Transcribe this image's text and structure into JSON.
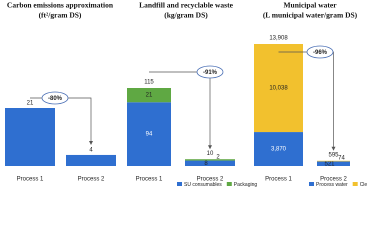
{
  "chart_data": [
    {
      "type": "bar",
      "title": "Carbon emissions approximation",
      "subtitle": "(ft²/gram DS)",
      "categories": [
        "Process 1",
        "Process 2"
      ],
      "values": [
        21,
        4
      ],
      "color": "#2f6fd0",
      "annotation": "-80%"
    },
    {
      "type": "stacked_bar",
      "title": "Landfill and recyclable waste",
      "subtitle": "(kg/gram DS)",
      "categories": [
        "Process 1",
        "Process 2"
      ],
      "series": [
        {
          "name": "SU consumables",
          "color": "#2f6fd0",
          "values": [
            94,
            8
          ]
        },
        {
          "name": "Packaging",
          "color": "#5fa843",
          "values": [
            21,
            2
          ]
        }
      ],
      "totals": [
        115,
        10
      ],
      "annotation": "-91%"
    },
    {
      "type": "stacked_bar",
      "title": "Municipal water",
      "subtitle": "(L municipal water/gram DS)",
      "categories": [
        "Process 1",
        "Process 2"
      ],
      "series": [
        {
          "name": "Process water",
          "color": "#2f6fd0",
          "values": [
            3870,
            521
          ],
          "value_labels": [
            "3,870",
            "521"
          ]
        },
        {
          "name": "Cleaning water",
          "color": "#f2c12e",
          "values": [
            10038,
            74
          ],
          "value_labels": [
            "10,038",
            "74"
          ]
        }
      ],
      "totals": [
        13908,
        595
      ],
      "total_labels": [
        "13,908",
        "595"
      ],
      "annotation": "-96%"
    }
  ]
}
